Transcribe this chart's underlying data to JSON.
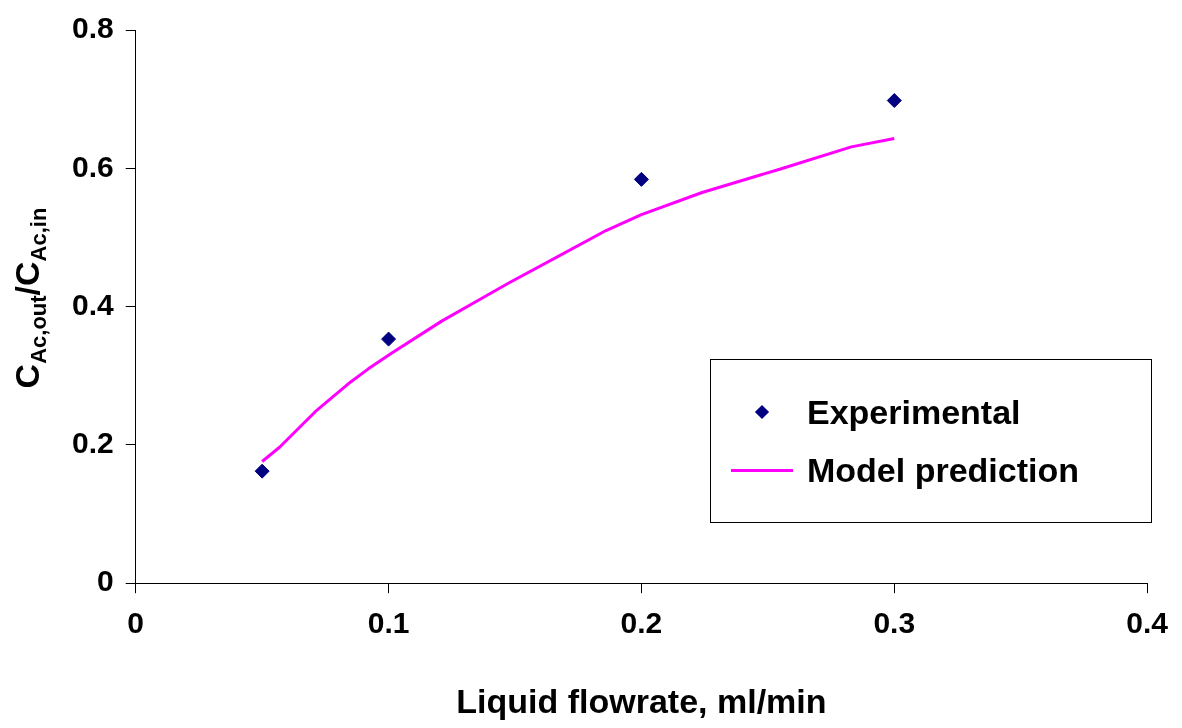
{
  "chart_data": {
    "type": "scatter",
    "xlabel": "Liquid flowrate, ml/min",
    "ylabel": "C$_{Ac,out}$/C$_{Ac,in}$",
    "xlim": [
      0,
      0.4
    ],
    "xticks": [
      0,
      0.1,
      0.2,
      0.3,
      0.4
    ],
    "ylim": [
      0,
      0.8
    ],
    "yticks": [
      0,
      0.2,
      0.4,
      0.6,
      0.8
    ],
    "grid": false,
    "legend": "bottom right",
    "marker": "diamond",
    "series": [
      {
        "name": "Experimental",
        "color": "#000080",
        "x": [
          0.05,
          0.1,
          0.2,
          0.3
        ],
        "values": [
          0.162,
          0.353,
          0.584,
          0.698
        ]
      },
      {
        "name": "Model prediction",
        "type": "line",
        "color": "#ff00ff",
        "marker": "none",
        "line_style": "solid",
        "x": [
          0.05,
          0.057,
          0.071,
          0.085,
          0.092,
          0.101,
          0.121,
          0.135,
          0.147,
          0.186,
          0.2,
          0.224,
          0.255,
          0.283,
          0.3
        ],
        "values": [
          0.176,
          0.197,
          0.248,
          0.291,
          0.31,
          0.332,
          0.379,
          0.408,
          0.433,
          0.51,
          0.533,
          0.565,
          0.599,
          0.631,
          0.643
        ]
      }
    ]
  }
}
